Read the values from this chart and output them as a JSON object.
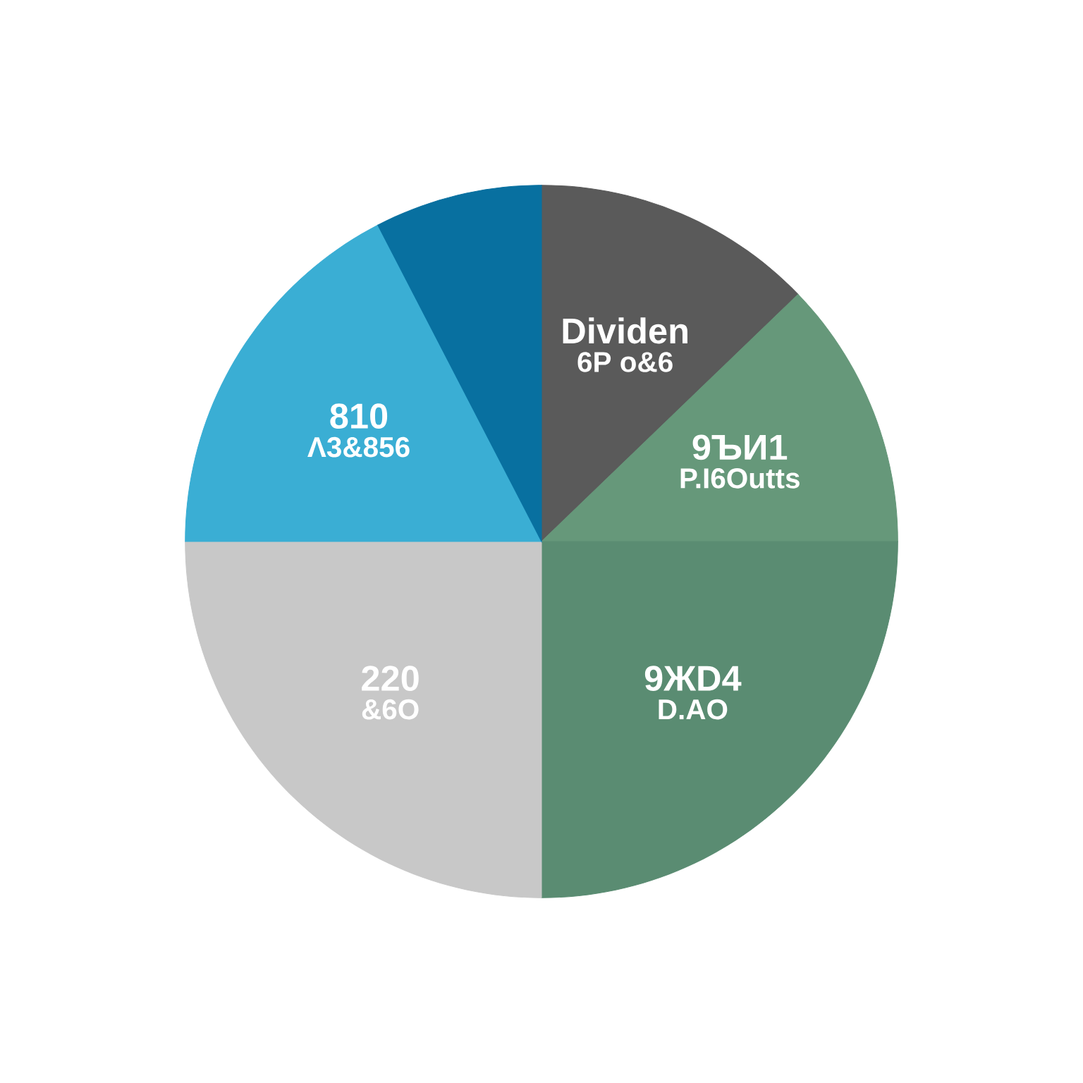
{
  "chart_data": {
    "type": "pie",
    "categories": [
      "Dividen",
      "9ЪИ1",
      "9ЖD4",
      "220",
      "810",
      null
    ],
    "values": [
      12.8,
      12.2,
      25,
      25,
      17.4,
      7.6
    ],
    "annotations": [
      "6P o&6",
      "P.I6Outts",
      "D.AO",
      "&6O",
      "Λ3&856"
    ],
    "colors": [
      "#5a5a5a",
      "#66987a",
      "#5a8c72",
      "#c8c8c8",
      "#3aaed4",
      "#0870a0"
    ]
  }
}
